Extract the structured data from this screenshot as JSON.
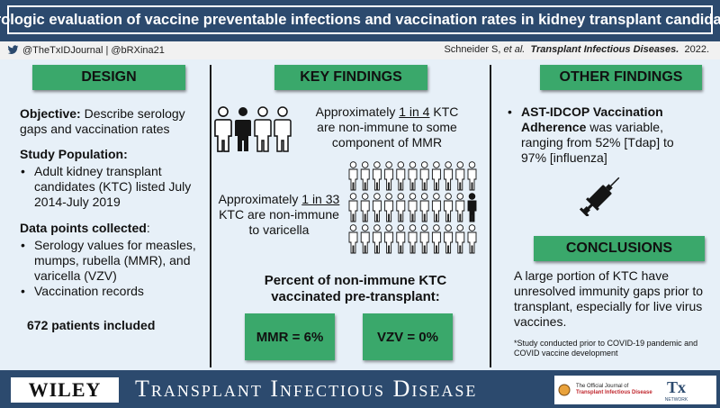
{
  "title": "Serologic evaluation of vaccine preventable infections and vaccination rates in kidney transplant candidates",
  "meta": {
    "social": "@TheTxIDJournal | @bRXina21",
    "authors": "Schneider S,",
    "etal": "et al.",
    "journal": "Transplant Infectious Diseases.",
    "year": "2022."
  },
  "design": {
    "heading": "DESIGN",
    "objective_label": "Objective:",
    "objective_text": "Describe serology gaps and vaccination rates",
    "population_label": "Study Population:",
    "population_items": [
      "Adult kidney transplant candidates (KTC) listed July 2014-July 2019"
    ],
    "datapoints_label": "Data points collected",
    "datapoints_colon": ":",
    "datapoints_items": [
      "Serology values for measles, mumps, rubella (MMR), and varicella (VZV)",
      "Vaccination records"
    ],
    "patients": "672 patients included"
  },
  "key": {
    "heading": "KEY FINDINGS",
    "mmr_pre": "Approximately ",
    "mmr_ratio": "1 in 4",
    "mmr_post": " KTC are non-immune to some component of MMR",
    "vzv_pre": "Approximately ",
    "vzv_ratio": "1 in 33",
    "vzv_post": " KTC are non-immune to varicella",
    "percent_title": "Percent of non-immune KTC vaccinated pre-transplant:",
    "mmr_stat": "MMR = 6%",
    "vzv_stat": "VZV = 0%"
  },
  "other": {
    "heading": "OTHER FINDINGS",
    "bold": "AST-IDCOP Vaccination Adherence",
    "text": " was variable, ranging from 52% [Tdap] to 97% [influenza]"
  },
  "conclusions": {
    "heading": "CONCLUSIONS",
    "text": "A large portion of KTC have unresolved immunity gaps prior to transplant, especially for live virus vaccines.",
    "footnote": "*Study conducted prior to COVID-19 pandemic and COVID vaccine development"
  },
  "footer": {
    "wiley": "WILEY",
    "journal": "Transplant Infectious Disease",
    "official": "The Official Journal of",
    "official_name": "Transplant Infectious Disease",
    "tx": "Tx",
    "network": "NETWORK"
  },
  "colors": {
    "navy": "#2c4a6e",
    "green": "#3aa86b",
    "panel": "#e7f0f8",
    "person_dark": "#151515",
    "person_light": "#ffffff"
  },
  "icons": {
    "twitter": "twitter-icon",
    "person": "person-icon",
    "syringe": "syringe-icon"
  }
}
